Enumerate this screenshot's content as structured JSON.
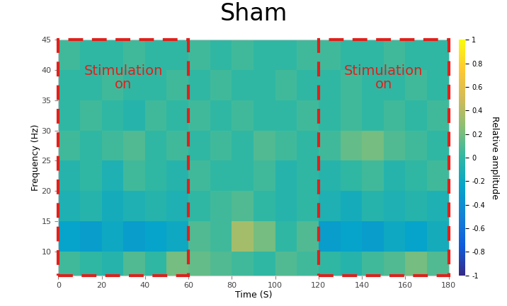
{
  "chart_data": {
    "type": "heatmap",
    "title": "Sham",
    "x_label": "Time (S)",
    "y_label": "Frequency (Hz)",
    "colorbar_label": "Relative amplitude",
    "x_edges": [
      0,
      10,
      20,
      30,
      40,
      50,
      60,
      70,
      80,
      90,
      100,
      110,
      120,
      130,
      140,
      150,
      160,
      170,
      180
    ],
    "y_edges": [
      6,
      10,
      15,
      20,
      25,
      30,
      35,
      40,
      45
    ],
    "cells": [
      [
        0.05,
        0.0,
        -0.05,
        0.1,
        0.0,
        0.2,
        0.15,
        0.1,
        0.05,
        0.0,
        0.1,
        0.05,
        0.0,
        -0.05,
        0.05,
        0.1,
        0.2,
        0.1
      ],
      [
        -0.25,
        -0.3,
        -0.2,
        -0.3,
        -0.25,
        -0.2,
        0.1,
        0.05,
        0.35,
        0.2,
        0.0,
        0.1,
        -0.3,
        -0.25,
        -0.3,
        -0.2,
        -0.25,
        -0.15
      ],
      [
        -0.1,
        -0.05,
        -0.15,
        -0.1,
        -0.05,
        -0.1,
        0.0,
        0.05,
        0.1,
        0.0,
        -0.05,
        0.0,
        -0.1,
        -0.15,
        -0.05,
        -0.1,
        -0.05,
        -0.1
      ],
      [
        -0.05,
        0.0,
        -0.1,
        0.05,
        0.0,
        -0.05,
        0.05,
        0.0,
        0.0,
        0.05,
        -0.05,
        0.0,
        -0.05,
        0.0,
        0.05,
        -0.05,
        0.0,
        0.05
      ],
      [
        0.05,
        0.0,
        0.05,
        0.1,
        0.0,
        0.05,
        0.0,
        0.05,
        0.0,
        0.1,
        0.05,
        0.0,
        0.05,
        0.15,
        0.2,
        0.1,
        0.05,
        0.0
      ],
      [
        0.0,
        0.05,
        0.0,
        -0.05,
        0.05,
        0.0,
        0.05,
        0.0,
        0.05,
        0.0,
        0.0,
        0.05,
        0.0,
        0.05,
        0.0,
        0.05,
        0.0,
        0.05
      ],
      [
        0.0,
        0.0,
        0.05,
        0.0,
        0.0,
        0.05,
        0.0,
        0.05,
        0.0,
        0.0,
        0.05,
        0.0,
        0.0,
        0.05,
        0.0,
        0.0,
        0.05,
        0.0
      ],
      [
        0.05,
        0.0,
        0.0,
        0.05,
        0.0,
        0.0,
        0.05,
        0.0,
        0.05,
        0.0,
        0.0,
        0.05,
        0.05,
        0.0,
        0.0,
        0.05,
        0.0,
        0.0
      ]
    ],
    "xlim": [
      0,
      180
    ],
    "xticks": [
      0,
      20,
      40,
      60,
      80,
      100,
      120,
      140,
      160,
      180
    ],
    "ylim": [
      6,
      45
    ],
    "yticks": [
      10,
      15,
      20,
      25,
      30,
      35,
      40,
      45
    ],
    "colorbar_lim": [
      -1,
      1
    ],
    "colorbar_ticks": [
      -1,
      -0.8,
      -0.6,
      -0.4,
      -0.2,
      0,
      0.2,
      0.4,
      0.6,
      0.8,
      1
    ],
    "stimulation_periods": [
      {
        "start": 0,
        "end": 60,
        "label": "Stimulation on"
      },
      {
        "start": 120,
        "end": 180,
        "label": "Stimulation on"
      }
    ]
  }
}
